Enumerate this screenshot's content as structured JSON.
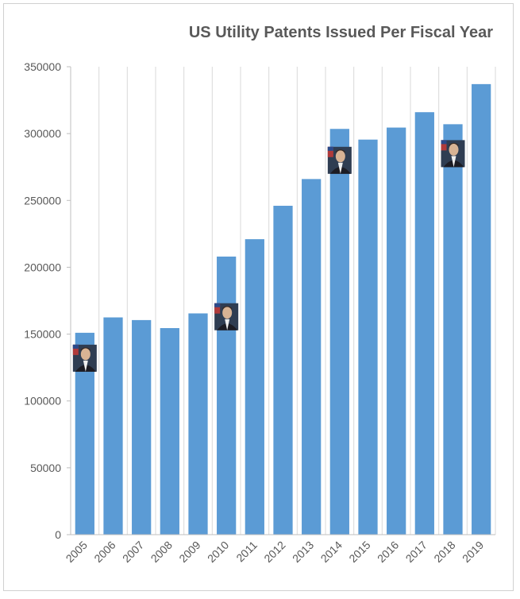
{
  "chart_data": {
    "type": "bar",
    "title": "US Utility Patents Issued Per Fiscal Year",
    "xlabel": "",
    "ylabel": "",
    "categories": [
      "2005",
      "2006",
      "2007",
      "2008",
      "2009",
      "2010",
      "2011",
      "2012",
      "2013",
      "2014",
      "2015",
      "2016",
      "2017",
      "2018",
      "2019"
    ],
    "values": [
      151000,
      162500,
      160500,
      154500,
      165500,
      208000,
      221000,
      246000,
      266000,
      303500,
      295500,
      304500,
      316000,
      307000,
      337000
    ],
    "ylim": [
      0,
      350000
    ],
    "yticks": [
      0,
      50000,
      100000,
      150000,
      200000,
      250000,
      300000,
      350000
    ],
    "grid": "vertical",
    "legend": "none",
    "bar_color": "#5b9bd5",
    "grid_color": "#d9d9d9",
    "axis_color": "#bfbfbf",
    "portraits": [
      {
        "category": "2005",
        "value": 132000,
        "icon": "portrait-photo"
      },
      {
        "category": "2010",
        "value": 163000,
        "icon": "portrait-photo"
      },
      {
        "category": "2014",
        "value": 280000,
        "icon": "portrait-photo"
      },
      {
        "category": "2018",
        "value": 285000,
        "icon": "portrait-photo"
      }
    ]
  }
}
